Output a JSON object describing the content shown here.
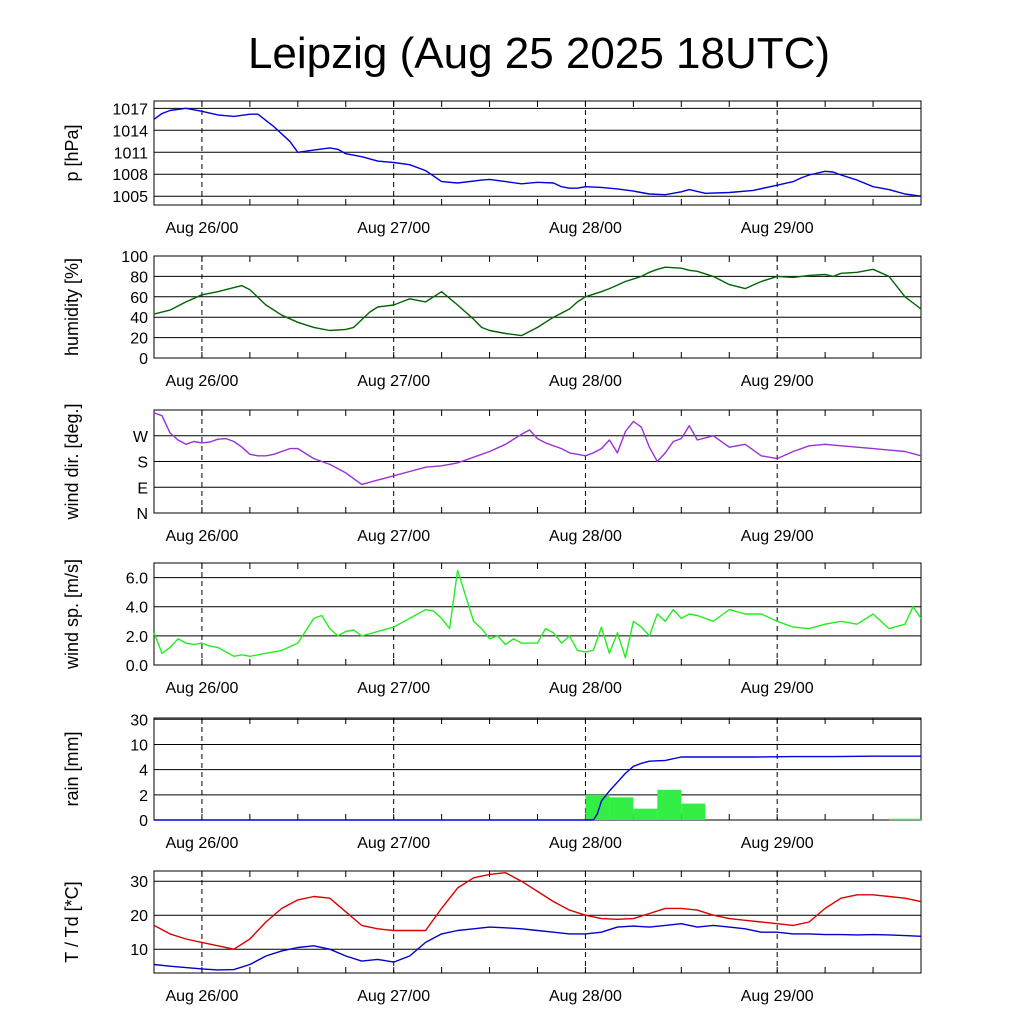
{
  "title": "Leipzig (Aug 25 2025 18UTC)",
  "x_labels": [
    "Aug 26/00",
    "Aug 27/00",
    "Aug 28/00",
    "Aug 29/00"
  ],
  "x_domain": [
    0,
    96
  ],
  "x_label_hours": [
    6,
    30,
    54,
    78
  ],
  "chart_data": [
    {
      "id": "pressure",
      "type": "line",
      "ylabel": "p [hPa]",
      "ylim": [
        1003.8,
        1018
      ],
      "yticks": [
        1005,
        1008,
        1011,
        1014,
        1017
      ],
      "ytick_labels": [
        "1005",
        "1008",
        "1011",
        "1014",
        "1017"
      ],
      "series": [
        {
          "name": "pressure",
          "color": "#0000dd",
          "x": [
            0,
            1,
            2,
            4,
            6,
            8,
            10,
            12,
            13,
            15,
            17,
            18,
            20,
            22,
            23,
            24,
            26,
            28,
            29,
            30,
            32,
            34,
            36,
            38,
            41,
            42,
            44,
            46,
            48,
            50,
            51,
            52,
            53,
            54,
            56,
            58,
            60,
            62,
            64,
            66,
            67,
            69,
            72,
            75,
            78,
            80,
            81,
            82,
            84,
            85,
            86,
            88,
            90,
            92,
            94,
            96
          ],
          "y": [
            1015.5,
            1016.3,
            1016.7,
            1017.0,
            1016.6,
            1016.1,
            1015.9,
            1016.2,
            1016.2,
            1014.5,
            1012.5,
            1011.0,
            1011.3,
            1011.6,
            1011.4,
            1010.8,
            1010.4,
            1009.8,
            1009.7,
            1009.6,
            1009.3,
            1008.5,
            1007.0,
            1006.8,
            1007.2,
            1007.3,
            1007.0,
            1006.7,
            1006.9,
            1006.8,
            1006.3,
            1006.1,
            1006.1,
            1006.3,
            1006.2,
            1006.0,
            1005.7,
            1005.3,
            1005.2,
            1005.6,
            1005.9,
            1005.4,
            1005.5,
            1005.8,
            1006.5,
            1007.0,
            1007.5,
            1007.9,
            1008.4,
            1008.3,
            1007.9,
            1007.2,
            1006.3,
            1005.9,
            1005.3,
            1005.0
          ]
        }
      ]
    },
    {
      "id": "humidity",
      "type": "line",
      "ylabel": "humidity [%]",
      "ylim": [
        0,
        100
      ],
      "yticks": [
        0,
        20,
        40,
        60,
        80,
        100
      ],
      "ytick_labels": [
        "0",
        "20",
        "40",
        "60",
        "80",
        "100"
      ],
      "series": [
        {
          "name": "humidity",
          "color": "#006400",
          "x": [
            0,
            2,
            4,
            6,
            8,
            10,
            11,
            12,
            14,
            16,
            18,
            20,
            22,
            24,
            25,
            27,
            28,
            30,
            31,
            32,
            34,
            36,
            38,
            40,
            41,
            42,
            44,
            46,
            48,
            50,
            52,
            53,
            54,
            56,
            57,
            59,
            61,
            62,
            63,
            64,
            66,
            67,
            68,
            70,
            72,
            74,
            76,
            78,
            80,
            82,
            84,
            85,
            86,
            88,
            90,
            92,
            94,
            96
          ],
          "y": [
            43,
            47,
            55,
            62,
            65,
            69,
            71,
            67,
            52,
            42,
            35,
            30,
            27,
            28,
            30,
            45,
            50,
            52,
            55,
            58,
            55,
            65,
            52,
            38,
            30,
            27,
            24,
            22,
            30,
            40,
            48,
            55,
            60,
            65,
            68,
            75,
            80,
            84,
            87,
            89,
            88,
            86,
            85,
            80,
            72,
            68,
            75,
            80,
            79,
            81,
            82,
            80,
            83,
            84,
            87,
            80,
            60,
            48
          ]
        }
      ]
    },
    {
      "id": "wind_direction",
      "type": "line",
      "ylabel": "wind dir. [deg.]",
      "ylim": [
        0,
        360
      ],
      "yticks": [
        0,
        90,
        180,
        270
      ],
      "ytick_labels": [
        "N",
        "E",
        "S",
        "W"
      ],
      "series": [
        {
          "name": "direction",
          "color": "#9b30d9",
          "x": [
            0,
            1,
            2,
            3,
            4,
            5,
            6,
            7,
            8,
            9,
            10,
            11,
            12,
            13,
            14,
            15,
            16,
            17,
            18,
            20,
            22,
            24,
            26,
            28,
            30,
            32,
            34,
            36,
            38,
            40,
            42,
            44,
            46,
            47,
            48,
            49,
            50,
            51,
            52,
            53,
            54,
            55,
            56,
            57,
            58,
            59,
            60,
            61,
            62,
            63,
            64,
            65,
            66,
            67,
            68,
            70,
            72,
            74,
            76,
            78,
            80,
            82,
            84,
            86,
            88,
            90,
            92,
            94,
            96
          ],
          "y": [
            350,
            340,
            280,
            255,
            240,
            250,
            245,
            248,
            258,
            260,
            250,
            230,
            205,
            200,
            200,
            205,
            215,
            225,
            225,
            190,
            170,
            140,
            100,
            115,
            130,
            145,
            160,
            165,
            175,
            195,
            215,
            240,
            275,
            290,
            260,
            245,
            235,
            225,
            210,
            205,
            200,
            210,
            225,
            255,
            210,
            285,
            320,
            300,
            230,
            180,
            210,
            250,
            260,
            305,
            255,
            270,
            230,
            240,
            200,
            190,
            215,
            235,
            240,
            235,
            230,
            225,
            220,
            215,
            200
          ]
        }
      ]
    },
    {
      "id": "wind_speed",
      "type": "line",
      "ylabel": "wind sp. [m/s]",
      "ylim": [
        0,
        7
      ],
      "yticks": [
        0,
        2,
        4,
        6
      ],
      "ytick_labels": [
        "0.0",
        "2.0",
        "4.0",
        "6.0"
      ],
      "series": [
        {
          "name": "speed",
          "color": "#22ee22",
          "x": [
            0,
            1,
            2,
            3,
            4,
            5,
            6,
            7,
            8,
            9,
            10,
            11,
            12,
            14,
            16,
            18,
            20,
            21,
            22,
            23,
            24,
            25,
            26,
            28,
            30,
            32,
            34,
            35,
            36,
            37,
            38,
            40,
            41,
            42,
            43,
            44,
            45,
            46,
            48,
            49,
            50,
            51,
            52,
            53,
            54,
            55,
            56,
            57,
            58,
            59,
            60,
            61,
            62,
            63,
            64,
            65,
            66,
            67,
            68,
            70,
            72,
            74,
            76,
            78,
            80,
            82,
            84,
            86,
            88,
            90,
            92,
            94,
            95,
            96
          ],
          "y": [
            2.2,
            0.8,
            1.2,
            1.8,
            1.5,
            1.4,
            1.5,
            1.3,
            1.2,
            0.9,
            0.6,
            0.7,
            0.6,
            0.8,
            1.0,
            1.5,
            3.2,
            3.4,
            2.5,
            2.0,
            2.3,
            2.4,
            2.0,
            2.3,
            2.6,
            3.2,
            3.8,
            3.7,
            3.2,
            2.5,
            6.5,
            3.0,
            2.5,
            1.8,
            2.0,
            1.4,
            1.8,
            1.5,
            1.5,
            2.5,
            2.2,
            1.5,
            2.0,
            1.0,
            0.9,
            1.0,
            2.6,
            0.8,
            2.2,
            0.5,
            3.0,
            2.6,
            2.0,
            3.5,
            3.0,
            3.8,
            3.2,
            3.5,
            3.4,
            3.0,
            3.8,
            3.5,
            3.5,
            3.0,
            2.6,
            2.5,
            2.8,
            3.0,
            2.8,
            3.5,
            2.5,
            2.8,
            4.0,
            3.2
          ]
        }
      ]
    },
    {
      "id": "rain",
      "type": "bar+line",
      "ylabel": "rain [mm]",
      "yticks": [
        0,
        2,
        4,
        10,
        30
      ],
      "ytick_labels": [
        "0",
        "2",
        "4",
        "10",
        "30"
      ],
      "series": [
        {
          "name": "rain per 3h",
          "type": "bar",
          "color": "#33ee44",
          "x_start": [
            54,
            57,
            60,
            63,
            66
          ],
          "x_end": [
            57,
            60,
            63,
            66,
            69
          ],
          "values": [
            2.0,
            1.8,
            0.9,
            2.4,
            1.3
          ]
        },
        {
          "name": "accumulated rain",
          "type": "line",
          "color": "#0000dd",
          "x": [
            0,
            55,
            55.5,
            56,
            57,
            58,
            59,
            60,
            61,
            62,
            63,
            64,
            66,
            70,
            75,
            80,
            85,
            90,
            96
          ],
          "y": [
            0,
            0,
            0.5,
            1.5,
            2.3,
            3.0,
            3.7,
            4.8,
            5.5,
            6.0,
            6.1,
            6.2,
            7.0,
            7.0,
            7.0,
            7.1,
            7.1,
            7.2,
            7.2
          ]
        },
        {
          "name": "late trace",
          "type": "line",
          "color": "#33ee44",
          "x": [
            92,
            96
          ],
          "y": [
            0.05,
            0.05
          ]
        }
      ]
    },
    {
      "id": "temperature",
      "type": "line",
      "ylabel": "T / Td [*C]",
      "ylim": [
        3,
        33
      ],
      "yticks": [
        10,
        20,
        30
      ],
      "ytick_labels": [
        "10",
        "20",
        "30"
      ],
      "series": [
        {
          "name": "T",
          "color": "#dd0000",
          "x": [
            0,
            2,
            4,
            6,
            8,
            10,
            12,
            14,
            16,
            18,
            20,
            22,
            24,
            26,
            28,
            30,
            32,
            34,
            36,
            38,
            40,
            42,
            44,
            46,
            48,
            50,
            52,
            54,
            56,
            58,
            60,
            62,
            64,
            66,
            68,
            70,
            72,
            74,
            76,
            78,
            80,
            82,
            84,
            86,
            88,
            90,
            92,
            94,
            96
          ],
          "y": [
            17,
            14.5,
            13,
            12,
            11,
            10,
            13,
            18,
            22,
            24.5,
            25.5,
            25,
            21,
            17,
            16,
            15.5,
            15.5,
            15.5,
            22,
            28,
            31,
            32,
            32.5,
            30,
            27,
            24,
            21.5,
            20,
            19,
            18.8,
            19,
            20.5,
            22,
            22,
            21.5,
            20,
            19,
            18.5,
            18,
            17.5,
            17,
            18,
            22,
            25,
            26,
            26,
            25.5,
            25,
            24
          ]
        },
        {
          "name": "Td",
          "color": "#0000cc",
          "x": [
            0,
            2,
            4,
            6,
            8,
            10,
            12,
            14,
            16,
            18,
            20,
            22,
            24,
            26,
            28,
            30,
            32,
            34,
            36,
            38,
            40,
            42,
            44,
            46,
            48,
            50,
            52,
            54,
            56,
            58,
            60,
            62,
            64,
            66,
            68,
            70,
            72,
            74,
            76,
            78,
            80,
            82,
            84,
            86,
            88,
            90,
            92,
            94,
            96
          ],
          "y": [
            5.5,
            5,
            4.6,
            4.2,
            3.9,
            4,
            5.5,
            8,
            9.5,
            10.5,
            11,
            10,
            8,
            6.5,
            7,
            6.2,
            8,
            12,
            14.5,
            15.5,
            16,
            16.5,
            16.3,
            16,
            15.5,
            15,
            14.5,
            14.5,
            15,
            16.5,
            16.8,
            16.5,
            17,
            17.5,
            16.5,
            17,
            16.5,
            16,
            15,
            15,
            14.5,
            14.5,
            14.3,
            14.3,
            14.2,
            14.3,
            14.2,
            14,
            13.8
          ]
        }
      ]
    }
  ]
}
